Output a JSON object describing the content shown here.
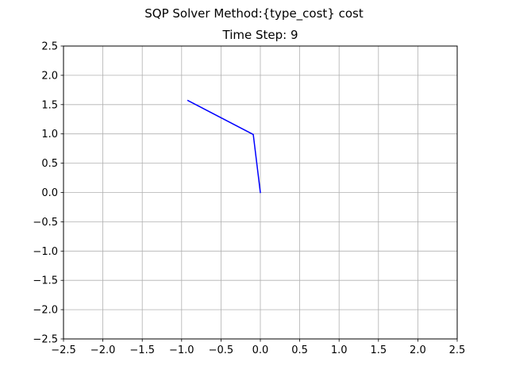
{
  "chart_data": {
    "type": "line",
    "suptitle": "SQP Solver Method:{type_cost} cost",
    "title": "Time Step: 9",
    "xlabel": "",
    "ylabel": "",
    "xlim": [
      -2.5,
      2.5
    ],
    "ylim": [
      -2.5,
      2.5
    ],
    "xticks": [
      -2.5,
      -2.0,
      -1.5,
      -1.0,
      -0.5,
      0.0,
      0.5,
      1.0,
      1.5,
      2.0,
      2.5
    ],
    "yticks": [
      -2.5,
      -2.0,
      -1.5,
      -1.0,
      -0.5,
      0.0,
      0.5,
      1.0,
      1.5,
      2.0,
      2.5
    ],
    "xtick_labels": [
      "−2.5",
      "−2.0",
      "−1.5",
      "−1.0",
      "−0.5",
      "0.0",
      "0.5",
      "1.0",
      "1.5",
      "2.0",
      "2.5"
    ],
    "ytick_labels": [
      "−2.5",
      "−2.0",
      "−1.5",
      "−1.0",
      "−0.5",
      "0.0",
      "0.5",
      "1.0",
      "1.5",
      "2.0",
      "2.5"
    ],
    "grid": true,
    "series": [
      {
        "color": "#0000ff",
        "x": [
          0.0,
          -0.09,
          -0.92
        ],
        "y": [
          0.0,
          0.99,
          1.57
        ]
      }
    ]
  }
}
